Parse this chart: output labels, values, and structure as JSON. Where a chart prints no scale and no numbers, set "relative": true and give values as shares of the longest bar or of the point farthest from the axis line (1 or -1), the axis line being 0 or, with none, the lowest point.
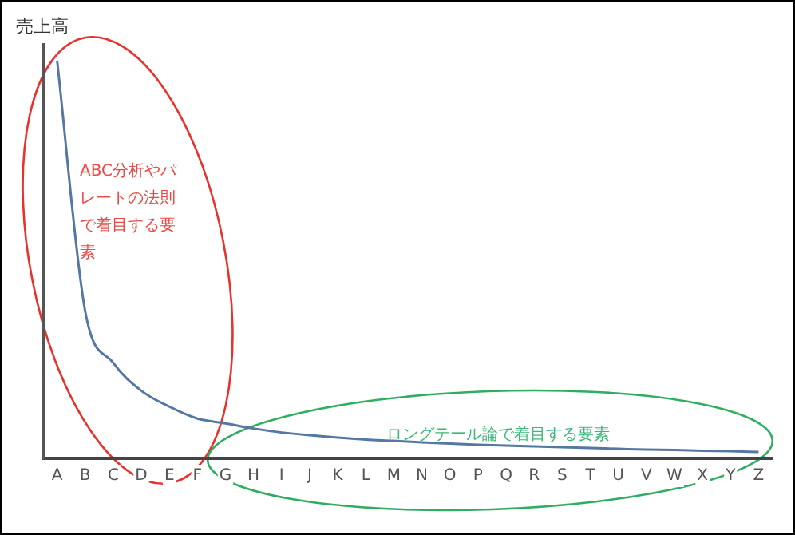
{
  "chart_data": {
    "type": "line",
    "ylabel": "売上高",
    "relative": true,
    "grid": false,
    "legend": false,
    "marker": "none",
    "line_style": "solid",
    "categories": [
      "A",
      "B",
      "C",
      "D",
      "E",
      "F",
      "G",
      "H",
      "I",
      "J",
      "K",
      "L",
      "M",
      "N",
      "O",
      "P",
      "Q",
      "R",
      "S",
      "T",
      "U",
      "V",
      "W",
      "X",
      "Y",
      "Z"
    ],
    "series": [
      {
        "color": "#5577a3",
        "values": [
          1,
          0.37,
          0.24,
          0.17,
          0.13,
          0.1,
          0.088,
          0.075,
          0.065,
          0.058,
          0.052,
          0.047,
          0.044,
          0.04,
          0.037,
          0.034,
          0.032,
          0.03,
          0.028,
          0.026,
          0.024,
          0.022,
          0.021,
          0.019,
          0.018,
          0.016
        ]
      }
    ],
    "annotations": [
      "ABC分析やパレートの法則で着目する要素",
      "ロングテール論で着目する要素"
    ]
  }
}
